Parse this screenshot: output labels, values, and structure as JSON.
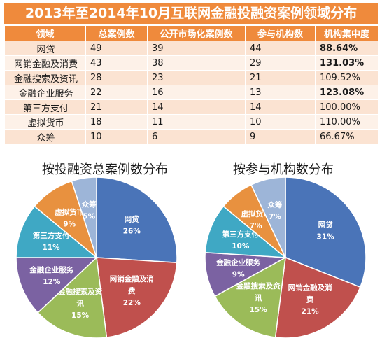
{
  "title": "2013年至2014年10月互联网金融投融资案例领域分布",
  "table": {
    "headers": [
      "领域",
      "总案例数",
      "公开市场化案例数",
      "参与机构数",
      "机构集中度"
    ],
    "rows": [
      {
        "domain": "网贷",
        "total": "49",
        "public": "39",
        "institutions": "44",
        "concentration": "88.64%",
        "bold": true
      },
      {
        "domain": "网销金融及消费",
        "total": "43",
        "public": "38",
        "institutions": "29",
        "concentration": "131.03%",
        "bold": true
      },
      {
        "domain": "金融搜索及资讯",
        "total": "28",
        "public": "23",
        "institutions": "21",
        "concentration": "109.52%",
        "bold": false
      },
      {
        "domain": "金融企业服务",
        "total": "22",
        "public": "16",
        "institutions": "13",
        "concentration": "123.08%",
        "bold": true
      },
      {
        "domain": "第三方支付",
        "total": "21",
        "public": "14",
        "institutions": "14",
        "concentration": "100.00%",
        "bold": false
      },
      {
        "domain": "虚拟货币",
        "total": "18",
        "public": "11",
        "institutions": "10",
        "concentration": "110.00%",
        "bold": false
      },
      {
        "domain": "众筹",
        "total": "10",
        "public": "6",
        "institutions": "9",
        "concentration": "66.67%",
        "bold": false
      }
    ]
  },
  "chart_data": [
    {
      "type": "pie",
      "title": "按投融资总案例数分布",
      "categories": [
        "网贷",
        "网销金融及消费",
        "金融搜索及资讯",
        "金融企业服务",
        "第三方支付",
        "虚拟货币",
        "众筹"
      ],
      "values": [
        26,
        22,
        15,
        12,
        11,
        9,
        5
      ],
      "labels": [
        [
          "网贷",
          "26%"
        ],
        [
          "网销金融及消",
          "费",
          "22%"
        ],
        [
          "金融搜索及资",
          "讯",
          "15%"
        ],
        [
          "金融企业服务",
          "12%"
        ],
        [
          "第三方支付",
          "11%"
        ],
        [
          "虚拟货币",
          "9%"
        ],
        [
          "众筹",
          "5%"
        ]
      ],
      "colors": [
        "#4a74b8",
        "#c0504d",
        "#9bbb59",
        "#7b62a2",
        "#3fa8c4",
        "#e8913f",
        "#9db5d8"
      ]
    },
    {
      "type": "pie",
      "title": "按参与机构数分布",
      "categories": [
        "网贷",
        "网销金融及消费",
        "金融搜索及资讯",
        "金融企业服务",
        "第三方支付",
        "虚拟货币",
        "众筹"
      ],
      "values": [
        31,
        21,
        15,
        9,
        10,
        7,
        7
      ],
      "labels": [
        [
          "网贷",
          "31%"
        ],
        [
          "网销金融及消",
          "费",
          "21%"
        ],
        [
          "金融搜索及资",
          "讯",
          "15%"
        ],
        [
          "金融企业服务",
          "9%"
        ],
        [
          "第三方支付",
          "10%"
        ],
        [
          "虚拟货币",
          "7%"
        ],
        [
          "众筹",
          "7%"
        ]
      ],
      "colors": [
        "#4a74b8",
        "#c0504d",
        "#9bbb59",
        "#7b62a2",
        "#3fa8c4",
        "#e8913f",
        "#9db5d8"
      ]
    }
  ]
}
